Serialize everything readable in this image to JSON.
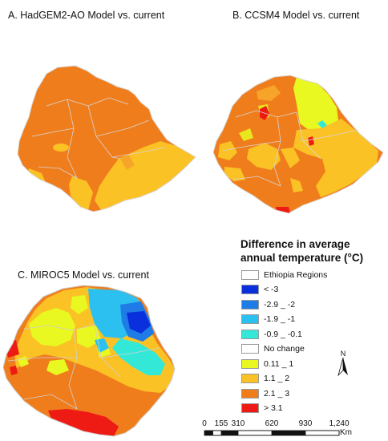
{
  "panels": {
    "a": {
      "title": "A. HadGEM2-AO Model vs. current"
    },
    "b": {
      "title": "B. CCSM4 Model vs. current"
    },
    "c": {
      "title": "C. MIROC5 Model vs. current"
    }
  },
  "legend": {
    "title": "Difference in average annual temperature (°C)",
    "items": [
      {
        "label": "Ethiopia Regions",
        "color": "#ffffff"
      },
      {
        "label": "< -3",
        "color": "#0a2fdc"
      },
      {
        "label": "-2.9 _ -2",
        "color": "#1f7be6"
      },
      {
        "label": "-1.9 _ -1",
        "color": "#2cc0f0"
      },
      {
        "label": "-0.9 _ -0.1",
        "color": "#34e8d8"
      },
      {
        "label": "No change",
        "color": "#ffffff"
      },
      {
        "label": "0.11 _ 1",
        "color": "#e8f820"
      },
      {
        "label": "1.1 _ 2",
        "color": "#fbc225"
      },
      {
        "label": "2.1 _ 3",
        "color": "#f07d1c"
      },
      {
        "label": "> 3.1",
        "color": "#ee1a14"
      }
    ]
  },
  "north_arrow": {
    "label": "N",
    "icon": "north-arrow-icon"
  },
  "scale": {
    "ticks": [
      "0",
      "155",
      "310",
      "620",
      "930",
      "1,240"
    ],
    "unit": "Km"
  }
}
